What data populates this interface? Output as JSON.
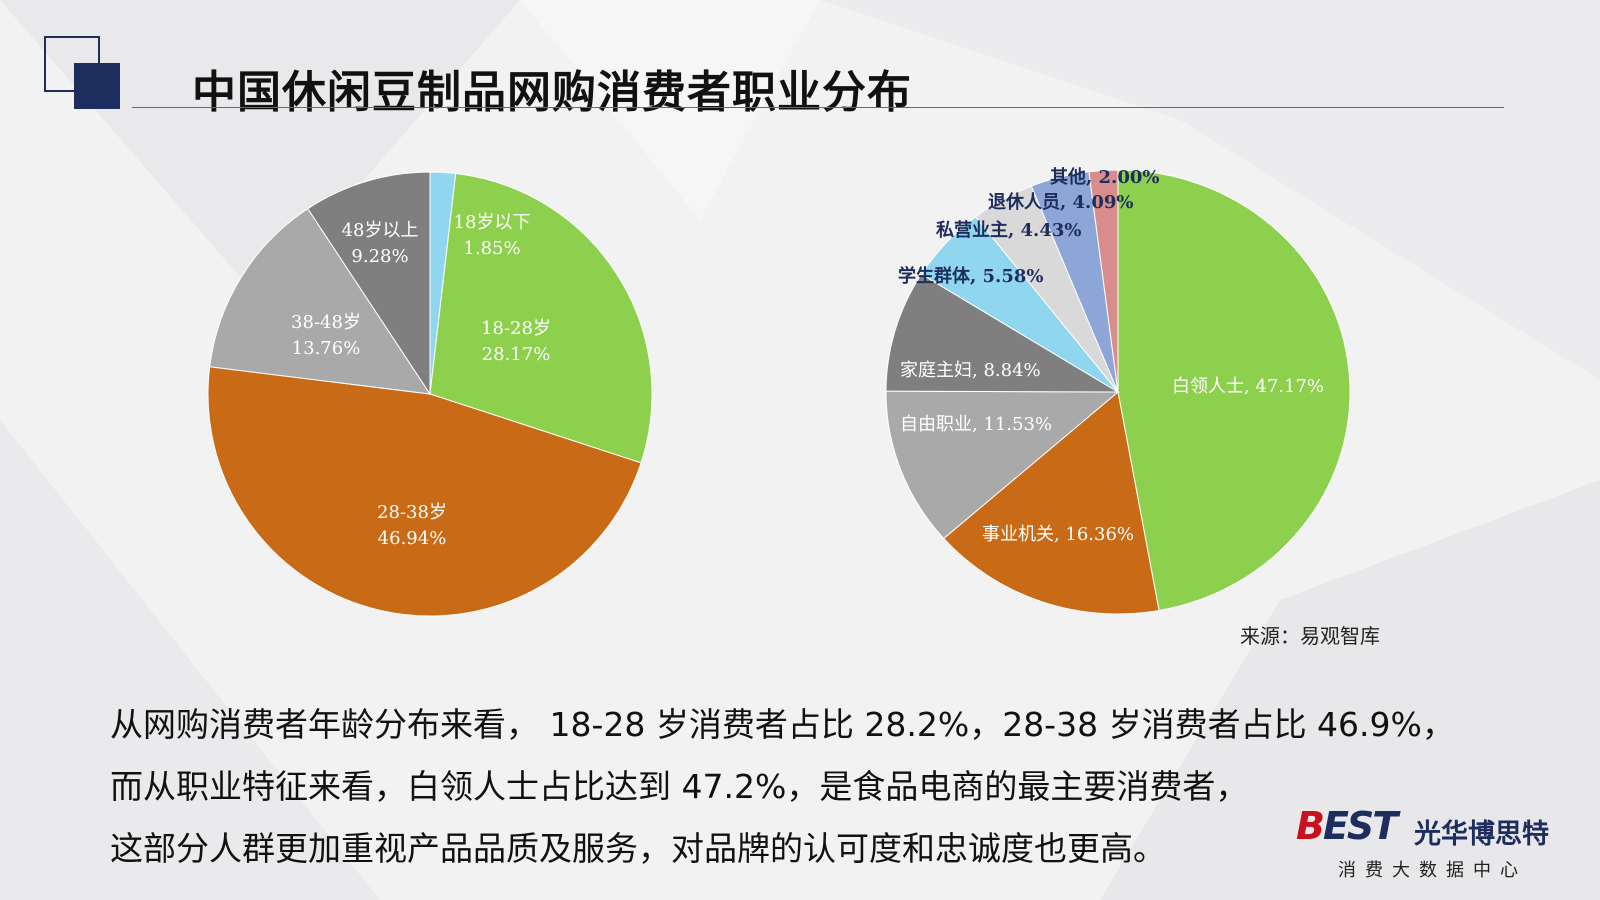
{
  "title": "中国休闲豆制品网购消费者职业分布",
  "source": "来源：易观智库",
  "summary": [
    "从网购消费者年龄分布来看， 18-28 岁消费者占比 28.2%，28-38 岁消费者占比 46.9%，",
    "而从职业特征来看，白领人士占比达到 47.2%，是食品电商的最主要消费者，",
    "这部分人群更加重视产品品质及服务，对品牌的认可度和忠诚度也更高。"
  ],
  "logo": {
    "mark_b": "B",
    "mark_rest": "EST",
    "name": "光华博思特",
    "sub": "消费大数据中心"
  },
  "colors": {
    "accent": "#1d2d5e",
    "green": "#8dd04e",
    "orange": "#c86a16",
    "gray_light": "#a9a9a9",
    "gray_dark": "#7f7f7f",
    "light_blue": "#8fd6ee",
    "light_gray": "#d9d9d9",
    "blue": "#8ea5d8",
    "pink": "#d98c8c"
  },
  "chart_data": [
    {
      "type": "pie",
      "categories": [
        "18岁以下",
        "18-28岁",
        "28-38岁",
        "38-48岁",
        "48岁以上"
      ],
      "values": [
        1.85,
        28.17,
        46.94,
        13.76,
        9.28
      ],
      "value_labels": [
        "1.85%",
        "28.17%",
        "46.94%",
        "13.76%",
        "9.28%"
      ],
      "colors": [
        "#8fd6ee",
        "#8dd04e",
        "#c86a16",
        "#a9a9a9",
        "#7f7f7f"
      ],
      "label_style": "two-line"
    },
    {
      "type": "pie",
      "categories": [
        "白领人士",
        "事业机关",
        "自由职业",
        "家庭主妇",
        "学生群体",
        "私营业主",
        "退休人员",
        "其他"
      ],
      "values": [
        47.17,
        16.36,
        11.53,
        8.84,
        5.58,
        4.43,
        4.09,
        2.0
      ],
      "value_labels": [
        "47.17%",
        "16.36%",
        "11.53%",
        "8.84%",
        "5.58%",
        "4.43%",
        "4.09%",
        "2.00%"
      ],
      "colors": [
        "#8dd04e",
        "#c86a16",
        "#a9a9a9",
        "#7f7f7f",
        "#8fd6ee",
        "#d9d9d9",
        "#8ea5d8",
        "#d98c8c"
      ],
      "label_style": "one-line"
    }
  ]
}
